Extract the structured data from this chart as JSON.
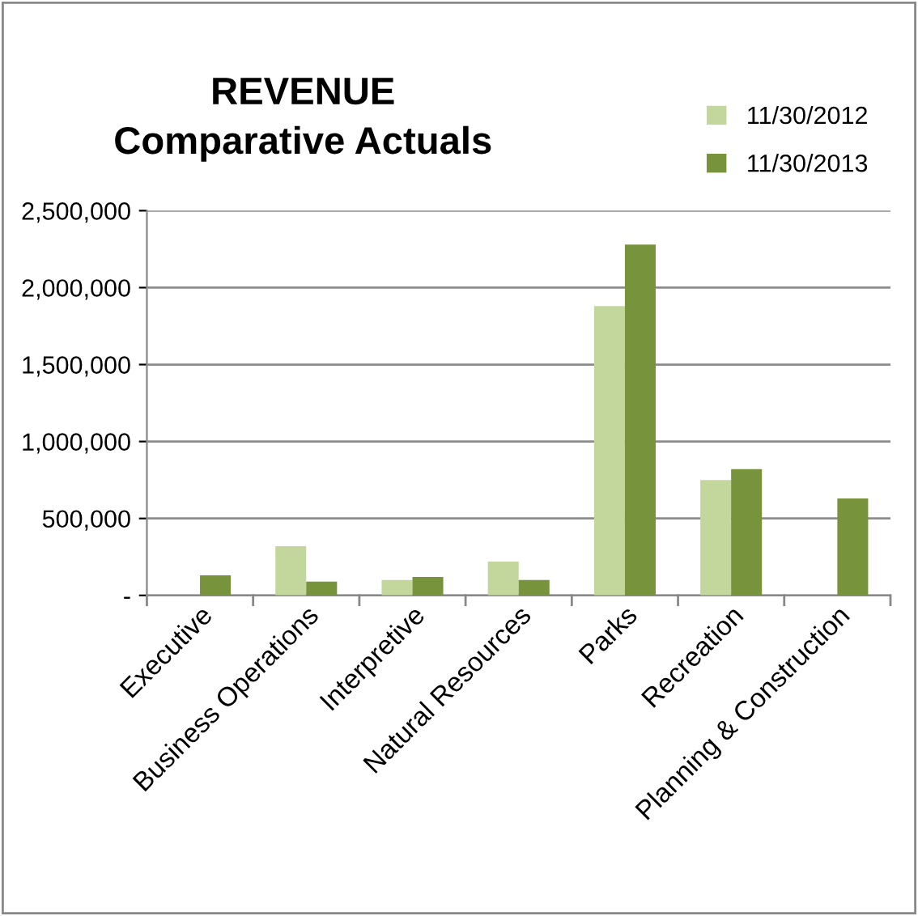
{
  "chart_data": {
    "type": "bar",
    "title": "REVENUE\nComparative Actuals",
    "categories": [
      "Executive",
      "Business Operations",
      "Interpretive",
      "Natural Resources",
      "Parks",
      "Recreation",
      "Planning & Construction"
    ],
    "series": [
      {
        "name": "11/30/2012",
        "color": "#c3d69b",
        "values": [
          0,
          320000,
          100000,
          220000,
          1880000,
          750000,
          0
        ]
      },
      {
        "name": "11/30/2013",
        "color": "#77933c",
        "values": [
          130000,
          90000,
          120000,
          100000,
          2280000,
          820000,
          630000
        ]
      }
    ],
    "ylim": [
      0,
      2500000
    ],
    "yticks": [
      {
        "value": 0,
        "label": "-"
      },
      {
        "value": 500000,
        "label": "500,000"
      },
      {
        "value": 1000000,
        "label": "1,000,000"
      },
      {
        "value": 1500000,
        "label": "1,500,000"
      },
      {
        "value": 2000000,
        "label": "2,000,000"
      },
      {
        "value": 2500000,
        "label": "2,500,000"
      }
    ],
    "grid": "y",
    "legend": "top right"
  }
}
